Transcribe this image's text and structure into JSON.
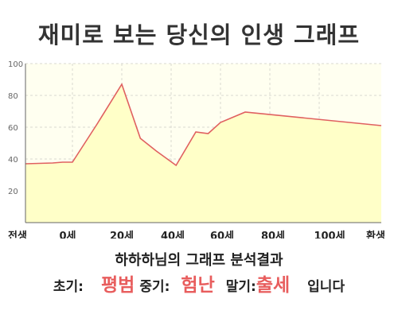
{
  "header": {
    "title": "재미로 보는 당신의 인생 그래프"
  },
  "chart_data": {
    "type": "area",
    "x_labels": [
      "전생",
      "0세",
      "20세",
      "40세",
      "60세",
      "80세",
      "100세",
      "환생"
    ],
    "y_ticks": [
      20,
      40,
      60,
      80,
      100
    ],
    "ylim": [
      0,
      100
    ],
    "grid": true,
    "points": [
      [
        -12,
        37
      ],
      [
        -8,
        37.5
      ],
      [
        -4,
        38
      ],
      [
        0,
        38
      ],
      [
        10,
        62
      ],
      [
        20,
        87
      ],
      [
        27.5,
        53
      ],
      [
        34,
        45
      ],
      [
        42,
        36
      ],
      [
        50,
        57
      ],
      [
        55,
        56
      ],
      [
        60,
        63
      ],
      [
        70,
        69.5
      ],
      [
        80,
        61
      ]
    ],
    "colors": {
      "fill": "#ffffc8",
      "line": "#e06060",
      "plot_bg": "#fffff0"
    }
  },
  "result": {
    "title": "하하하님의 그래프 분석결과",
    "early_label": "초기:",
    "early_value": "평범",
    "middle_label": "중기:",
    "middle_value": "험난",
    "late_label": "말기:",
    "late_value": "출세",
    "ending": "입니다",
    "accent_color": "#e85d5d"
  }
}
